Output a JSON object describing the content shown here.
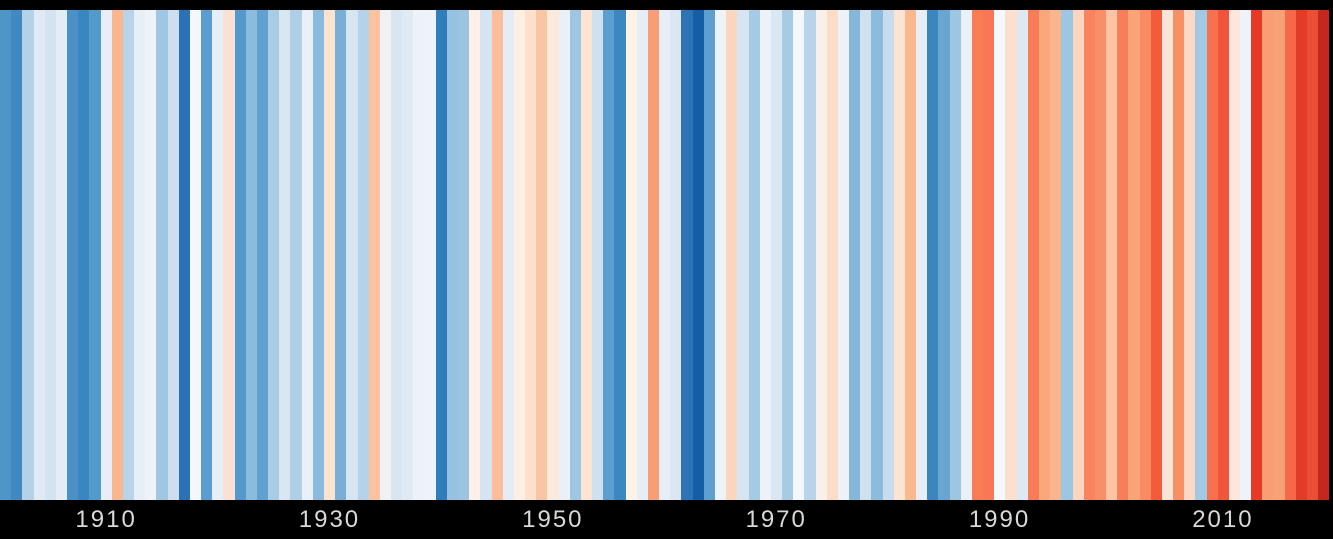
{
  "page": {
    "background": "#000000"
  },
  "chart_data": {
    "type": "heatmap",
    "subtype": "warming-stripes",
    "orientation": "vertical-stripes-by-year",
    "x_start_year": 1901,
    "x_end_year": 2019,
    "stripe_count": 119,
    "colors": [
      "#4e95c8",
      "#4289c1",
      "#b3d2e8",
      "#dfeaf4",
      "#d3e3f0",
      "#e4edf6",
      "#4a92c6",
      "#3a86c0",
      "#529ac9",
      "#e8edf7",
      "#f9b68f",
      "#b8d4e9",
      "#e7eef6",
      "#eef3fa",
      "#9fc7e3",
      "#cddfee",
      "#2a72b4",
      "#f4f8fc",
      "#5b9dce",
      "#e6eef7",
      "#fbe1d3",
      "#5598cb",
      "#8cbcdd",
      "#60a1d0",
      "#a9cce5",
      "#d8e7f2",
      "#aecfe6",
      "#e9f0f8",
      "#8abadd",
      "#fbe3d0",
      "#79afd7",
      "#d7e5f1",
      "#b5d2e8",
      "#fac29e",
      "#f0f1f3",
      "#d8e6f2",
      "#dfeaf4",
      "#edf2f9",
      "#eef3fa",
      "#2e7ebc",
      "#97c1e0",
      "#9cc4e1",
      "#fdf0e6",
      "#d5e4f1",
      "#fbbd9a",
      "#e4edf6",
      "#fdf0e3",
      "#fce0cc",
      "#fac5a2",
      "#faeade",
      "#e9f0f7",
      "#9cc6e2",
      "#fce3d3",
      "#cfe0ee",
      "#5b9fd0",
      "#3c87c0",
      "#fdf2e8",
      "#e6edf5",
      "#f99d74",
      "#e8eef8",
      "#dbe7f3",
      "#2d74b5",
      "#155da4",
      "#5d9fd0",
      "#eef3f8",
      "#fbd6bf",
      "#d6e5f1",
      "#a5cae4",
      "#edf2f8",
      "#d9e7f2",
      "#a8cbe4",
      "#f3f6fa",
      "#b7d4e9",
      "#faf0ea",
      "#fbdcc6",
      "#edf2f8",
      "#85b7db",
      "#cfe0ee",
      "#8cbcdd",
      "#c8dcee",
      "#fce4d2",
      "#fbb88e",
      "#e7eef5",
      "#3c86c0",
      "#68a5d1",
      "#9ec6e2",
      "#e9f0f7",
      "#f87c55",
      "#f87757",
      "#f5f8fc",
      "#fce0cf",
      "#dce9f3",
      "#f87c55",
      "#f9a87c",
      "#f9b68d",
      "#9cc6e2",
      "#fcd5c0",
      "#f8835f",
      "#f98e68",
      "#fcc4a4",
      "#f87e59",
      "#f9a379",
      "#f88b63",
      "#f25c3b",
      "#fce5d6",
      "#f89066",
      "#fcd9c4",
      "#a2c9e4",
      "#f8714e",
      "#f1543a",
      "#fbe7dc",
      "#eef3fa",
      "#e63a26",
      "#f99d74",
      "#f9a176",
      "#f6684a",
      "#e23b27",
      "#ea4e35",
      "#c5271f"
    ],
    "x_tick_labels": [
      "1910",
      "1930",
      "1950",
      "1970",
      "1990",
      "2010"
    ],
    "tick_year_positions": [
      1910,
      1930,
      1950,
      1970,
      1990,
      2010
    ],
    "axis": {
      "tick_text_color": "#d9d9d9",
      "band_color": "#000000",
      "top_border_color": "#000000"
    }
  }
}
